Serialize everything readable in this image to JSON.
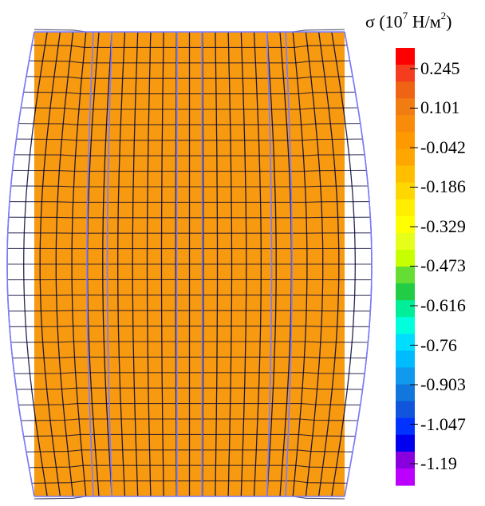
{
  "legend": {
    "symbol": "σ",
    "title_prefix": "(10",
    "title_exp": "7",
    "title_unit": " Н/м",
    "title_unit_exp": "2",
    "title_suffix": ")",
    "tick_labels": [
      "0.245",
      "0.101",
      "-0.042",
      "-0.186",
      "-0.329",
      "-0.473",
      "-0.616",
      "-0.76",
      "-0.903",
      "-1.047",
      "-1.19"
    ],
    "colors": [
      "#ff0000",
      "#f43d1e",
      "#ee6314",
      "#f07c12",
      "#f88c0a",
      "#ff9900",
      "#ffa600",
      "#ffbf00",
      "#ffd700",
      "#ffee00",
      "#ffff00",
      "#e6ff1a",
      "#c8ff00",
      "#66dd33",
      "#22cc44",
      "#00ee99",
      "#00ffdd",
      "#00ddff",
      "#00bbff",
      "#1199ee",
      "#1177dd",
      "#1155dd",
      "#0033ff",
      "#0000ee",
      "#8800dd",
      "#bb00ff"
    ]
  },
  "specimen": {
    "fill_color": "#f79a10",
    "mesh_color": "#000033",
    "outline_color": "#7a7aff"
  }
}
